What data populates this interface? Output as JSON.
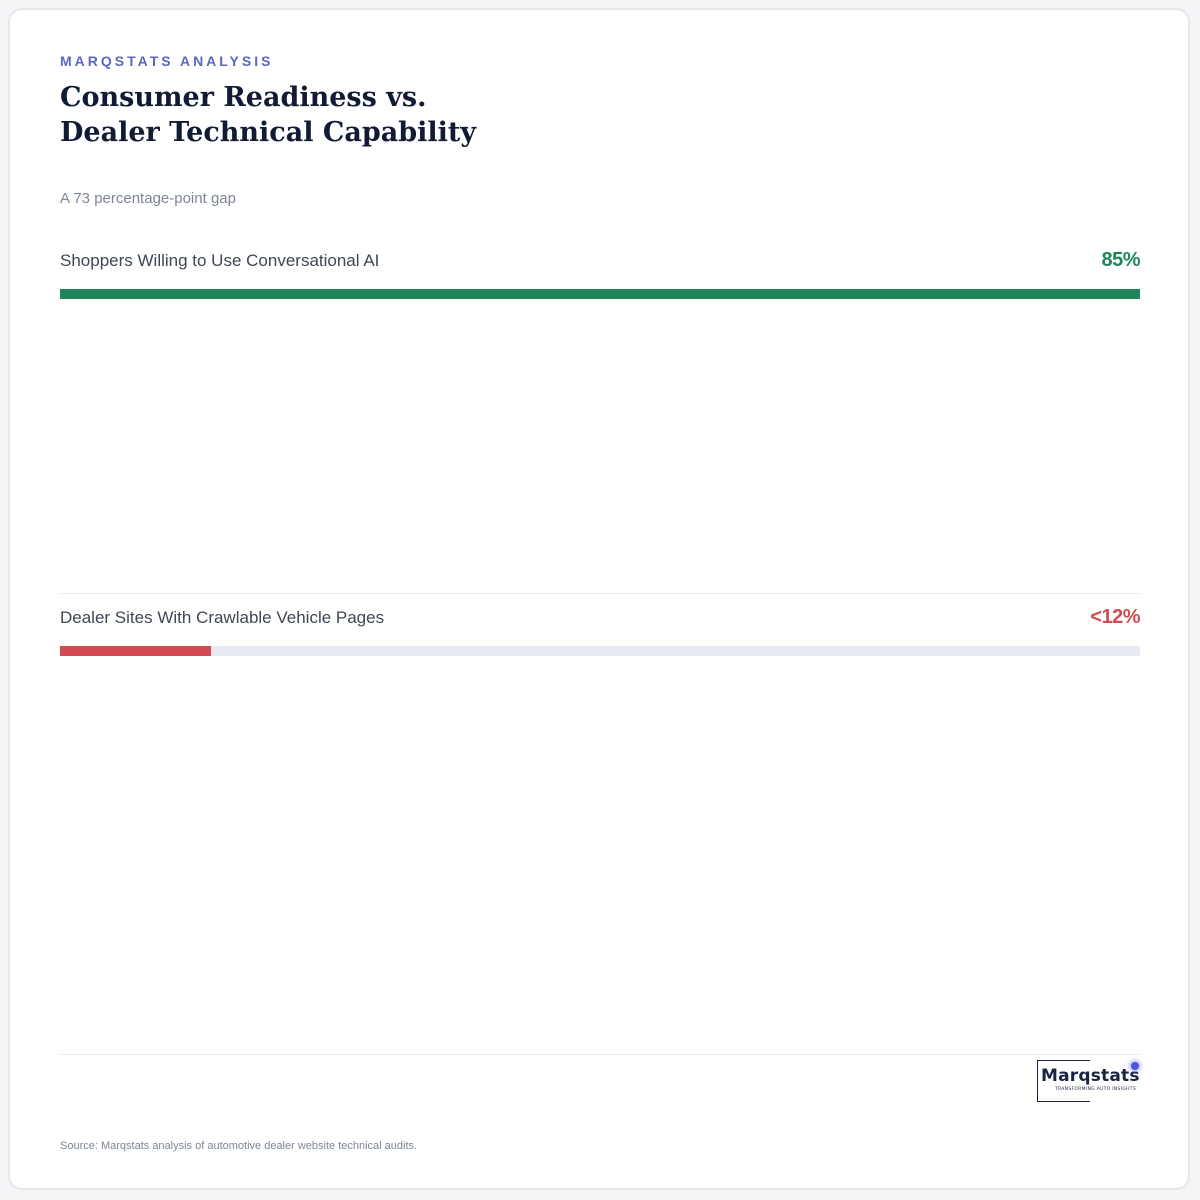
{
  "eyebrow": "MARQSTATS ANALYSIS",
  "title_lines": [
    "Consumer Readiness vs.",
    "Dealer Technical Capability"
  ],
  "subtitle": "A 73 percentage-point gap",
  "colors": {
    "positive": "#1f8559",
    "negative": "#d24b52",
    "track": "#e6ebf2",
    "accent": "#5b67c0"
  },
  "chart_data": {
    "type": "bar",
    "orientation": "horizontal",
    "categories": [
      "Shoppers Willing to Use Conversational AI",
      "Dealer Sites With Crawlable Vehicle Pages"
    ],
    "values": [
      85,
      12
    ],
    "value_labels": [
      "85%",
      "<12%"
    ],
    "fill_fraction": [
      1.0,
      0.14
    ],
    "title": "Consumer Readiness vs. Dealer Technical Capability",
    "subtitle": "A 73 percentage-point gap"
  },
  "logo": {
    "wordmark": "Marqstats",
    "tagline": "TRANSFORMING AUTO INSIGHTS"
  },
  "source": "Source: Marqstats analysis of automotive dealer website technical audits."
}
